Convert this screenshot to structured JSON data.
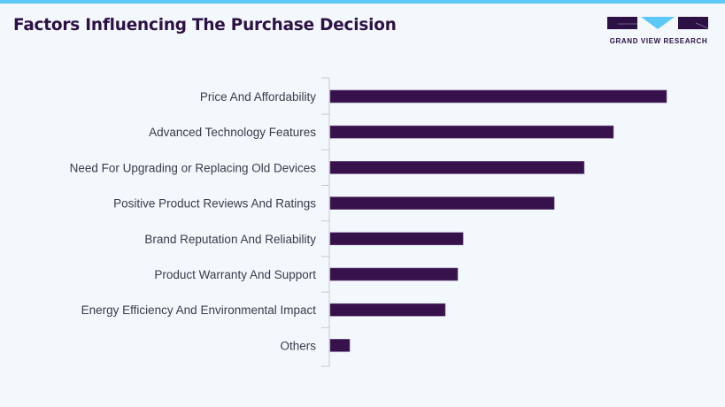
{
  "header": {
    "title": "Factors Influencing The Purchase Decision",
    "brand": "GRAND VIEW RESEARCH",
    "accent_color": "#5bc8f5",
    "brand_color": "#2d1145"
  },
  "chart_data": {
    "type": "bar",
    "orientation": "horizontal",
    "title": "Factors Influencing The Purchase Decision",
    "xlabel": "",
    "ylabel": "",
    "value_unit": "relative (longest bar = 100)",
    "categories": [
      "Price And Affordability",
      "Advanced Technology Features",
      "Need For Upgrading or Replacing Old Devices",
      "Positive Product Reviews And Ratings",
      "Brand Reputation And Reliability",
      "Product Warranty And Support",
      "Energy Efficiency And Environmental Impact",
      "Others"
    ],
    "values": [
      100,
      84.2,
      75.5,
      66.6,
      39.5,
      37.9,
      34.2,
      5.8
    ],
    "xlim": [
      0,
      100
    ],
    "bar_color": "#37114a",
    "grid": false,
    "legend": "none"
  }
}
